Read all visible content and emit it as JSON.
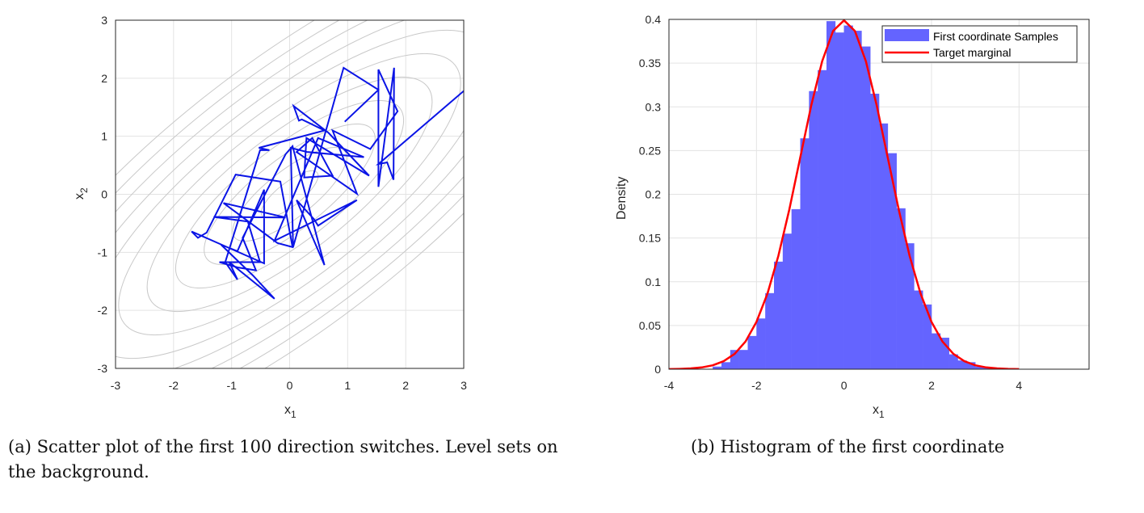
{
  "captions": {
    "a": "(a) Scatter plot of the first 100 direction switches. Level sets on the background.",
    "b": "(b) Histogram of the first coordinate"
  },
  "chart_data": [
    {
      "type": "line",
      "xlabel": "x",
      "xlabel_sub": "1",
      "ylabel": "x",
      "ylabel_sub": "2",
      "xlim": [
        -3,
        3
      ],
      "ylim": [
        -3,
        3
      ],
      "xticks": [
        "-3",
        "-2",
        "-1",
        "0",
        "1",
        "2",
        "3"
      ],
      "yticks": [
        "-3",
        "-2",
        "-1",
        "0",
        "1",
        "2",
        "3"
      ],
      "grid": true,
      "background": "level sets (gray contours)",
      "line_color": "#0a14e6",
      "contour_color": "#c8c8c8",
      "path": [
        [
          3.0,
          1.78
        ],
        [
          1.53,
          0.52
        ],
        [
          1.68,
          0.55
        ],
        [
          1.79,
          0.25
        ],
        [
          1.8,
          2.18
        ],
        [
          1.53,
          0.13
        ],
        [
          1.53,
          2.15
        ],
        [
          1.86,
          1.43
        ],
        [
          1.39,
          0.78
        ],
        [
          0.74,
          1.1
        ],
        [
          1.16,
          0.01
        ],
        [
          0.12,
          0.73
        ],
        [
          0.39,
          0.97
        ],
        [
          0.74,
          0.32
        ],
        [
          0.25,
          0.29
        ],
        [
          0.29,
          0.97
        ],
        [
          1.37,
          0.32
        ],
        [
          0.67,
          1.06
        ],
        [
          0.07,
          1.52
        ],
        [
          0.16,
          1.27
        ],
        [
          0.21,
          1.29
        ],
        [
          0.6,
          1.1
        ],
        [
          -0.53,
          0.8
        ],
        [
          -0.35,
          0.76
        ],
        [
          -0.51,
          0.76
        ],
        [
          -1.11,
          -1.17
        ],
        [
          -0.9,
          -1.47
        ],
        [
          -1.04,
          -1.17
        ],
        [
          -0.26,
          -1.8
        ],
        [
          -0.63,
          -1.4
        ],
        [
          -1.18,
          -0.87
        ],
        [
          -0.9,
          -0.98
        ],
        [
          -0.44,
          0.08
        ],
        [
          -0.44,
          -1.19
        ],
        [
          -1.69,
          -0.64
        ],
        [
          -1.58,
          -0.75
        ],
        [
          -1.43,
          -0.66
        ],
        [
          -0.93,
          0.34
        ],
        [
          -0.16,
          0.22
        ],
        [
          0.05,
          -0.91
        ],
        [
          -0.21,
          -0.84
        ],
        [
          -1.14,
          -0.15
        ],
        [
          -0.07,
          -0.4
        ],
        [
          -1.31,
          -0.39
        ],
        [
          -0.72,
          -0.47
        ],
        [
          -0.51,
          -1.17
        ],
        [
          -1.21,
          -1.17
        ],
        [
          -0.9,
          -1.26
        ],
        [
          -0.58,
          -1.31
        ],
        [
          -0.81,
          -0.75
        ],
        [
          -0.07,
          0.69
        ],
        [
          0.05,
          0.83
        ],
        [
          0.6,
          -1.22
        ],
        [
          0.12,
          -0.1
        ],
        [
          0.42,
          -0.43
        ],
        [
          0.49,
          -0.54
        ],
        [
          1.16,
          -0.1
        ],
        [
          -0.26,
          -0.8
        ],
        [
          0.49,
          0.97
        ],
        [
          1.28,
          0.64
        ],
        [
          0.3,
          0.73
        ],
        [
          0.02,
          0.8
        ],
        [
          0.06,
          -0.91
        ],
        [
          0.93,
          2.18
        ],
        [
          1.53,
          1.8
        ],
        [
          0.95,
          1.25
        ]
      ]
    },
    {
      "type": "bar",
      "xlabel": "x",
      "xlabel_sub": "1",
      "ylabel": "Density",
      "xlim": [
        -4,
        5.6
      ],
      "ylim": [
        0,
        0.4
      ],
      "xticks": [
        "-4",
        "-2",
        "0",
        "2",
        "4"
      ],
      "yticks": [
        "0",
        "0.05",
        "0.1",
        "0.15",
        "0.2",
        "0.25",
        "0.3",
        "0.35",
        "0.4"
      ],
      "grid": true,
      "legend_position": "top-right",
      "bin_width": 0.2,
      "series": [
        {
          "name": "First coordinate Samples",
          "color": "#6464ff",
          "bin_starts": [
            -3.0,
            -2.8,
            -2.6,
            -2.4,
            -2.2,
            -2.0,
            -1.8,
            -1.6,
            -1.4,
            -1.2,
            -1.0,
            -0.8,
            -0.6,
            -0.4,
            -0.2,
            0.0,
            0.2,
            0.4,
            0.6,
            0.8,
            1.0,
            1.2,
            1.4,
            1.6,
            1.8,
            2.0,
            2.2,
            2.4,
            2.6,
            2.8,
            3.0,
            3.2,
            3.4
          ],
          "values": [
            0.003,
            0.008,
            0.022,
            0.022,
            0.038,
            0.058,
            0.087,
            0.123,
            0.155,
            0.183,
            0.264,
            0.318,
            0.342,
            0.398,
            0.385,
            0.393,
            0.387,
            0.369,
            0.315,
            0.281,
            0.247,
            0.184,
            0.144,
            0.09,
            0.074,
            0.041,
            0.036,
            0.017,
            0.01,
            0.008,
            0.003,
            0.002,
            0.001
          ]
        },
        {
          "name": "Target marginal",
          "type": "line",
          "color": "#ff0000",
          "x": [
            -4,
            -3.75,
            -3.5,
            -3.25,
            -3,
            -2.75,
            -2.5,
            -2.25,
            -2,
            -1.75,
            -1.5,
            -1.25,
            -1,
            -0.75,
            -0.5,
            -0.25,
            0,
            0.25,
            0.5,
            0.75,
            1,
            1.25,
            1.5,
            1.75,
            2,
            2.25,
            2.5,
            2.75,
            3,
            3.25,
            3.5,
            3.75,
            4
          ],
          "y": [
            0.0001,
            0.0004,
            0.0009,
            0.002,
            0.0044,
            0.0091,
            0.0175,
            0.0317,
            0.054,
            0.0863,
            0.1295,
            0.1826,
            0.242,
            0.3011,
            0.3521,
            0.3867,
            0.3989,
            0.3867,
            0.3521,
            0.3011,
            0.242,
            0.1826,
            0.1295,
            0.0863,
            0.054,
            0.0317,
            0.0175,
            0.0091,
            0.0044,
            0.002,
            0.0009,
            0.0004,
            0.0001
          ]
        }
      ]
    }
  ]
}
